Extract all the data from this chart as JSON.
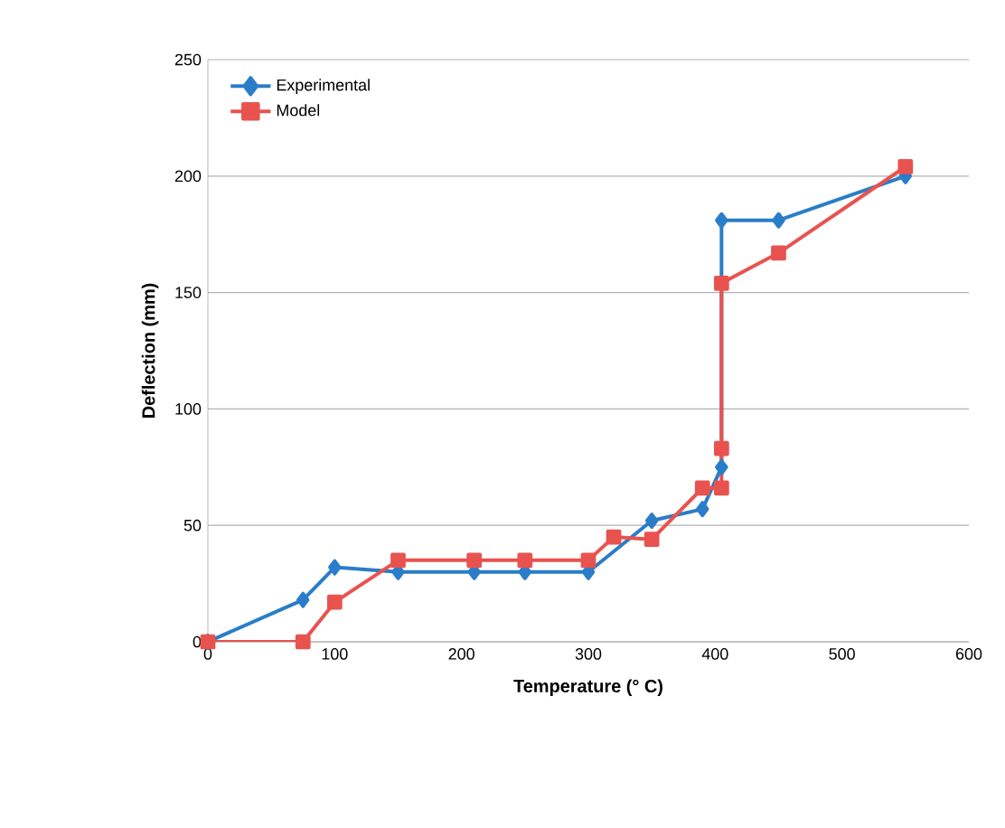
{
  "chart_data": {
    "type": "line",
    "xlabel": "Temperature (° C)",
    "ylabel": "Deflection (mm)",
    "xlim": [
      0,
      600
    ],
    "xticks": [
      0,
      100,
      200,
      300,
      400,
      500,
      600
    ],
    "ylim": [
      0,
      250
    ],
    "yticks": [
      0,
      50,
      100,
      150,
      200,
      250
    ],
    "grid": "y",
    "legend": "top left",
    "series": [
      {
        "name": "Experimental",
        "color": "#2a7dc8",
        "marker": "diamond",
        "x": [
          0,
          75,
          100,
          150,
          210,
          250,
          300,
          350,
          390,
          405,
          405,
          450,
          550
        ],
        "values": [
          0,
          18,
          32,
          30,
          30,
          30,
          30,
          52,
          57,
          75,
          181,
          181,
          200
        ]
      },
      {
        "name": "Model",
        "color": "#e8534f",
        "marker": "square",
        "x": [
          0,
          75,
          100,
          150,
          210,
          250,
          300,
          320,
          350,
          390,
          405,
          405,
          405,
          450,
          550
        ],
        "values": [
          0,
          0,
          17,
          35,
          35,
          35,
          35,
          45,
          44,
          66,
          66,
          83,
          154,
          167,
          204
        ]
      }
    ]
  }
}
